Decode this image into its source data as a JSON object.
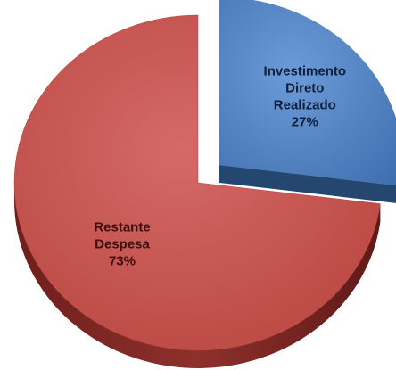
{
  "chart_data": {
    "type": "pie",
    "title": "",
    "categories": [
      "Investimento Direto Realizado",
      "Restante Despesa"
    ],
    "values": [
      27,
      73
    ],
    "series": [
      {
        "slices": [
          {
            "name_lines": [
              "Investimento",
              "Direto",
              "Realizado"
            ],
            "value": 27,
            "pct_label": "27%",
            "color": "#4f81bd",
            "side_color": "#2c4d75",
            "exploded": true
          },
          {
            "name_lines": [
              "Restante",
              "Despesa"
            ],
            "value": 73,
            "pct_label": "73%",
            "color": "#c0504d",
            "side_color": "#7a2724",
            "exploded": false
          }
        ]
      }
    ],
    "style": "3d-exploded",
    "legend": "none"
  }
}
